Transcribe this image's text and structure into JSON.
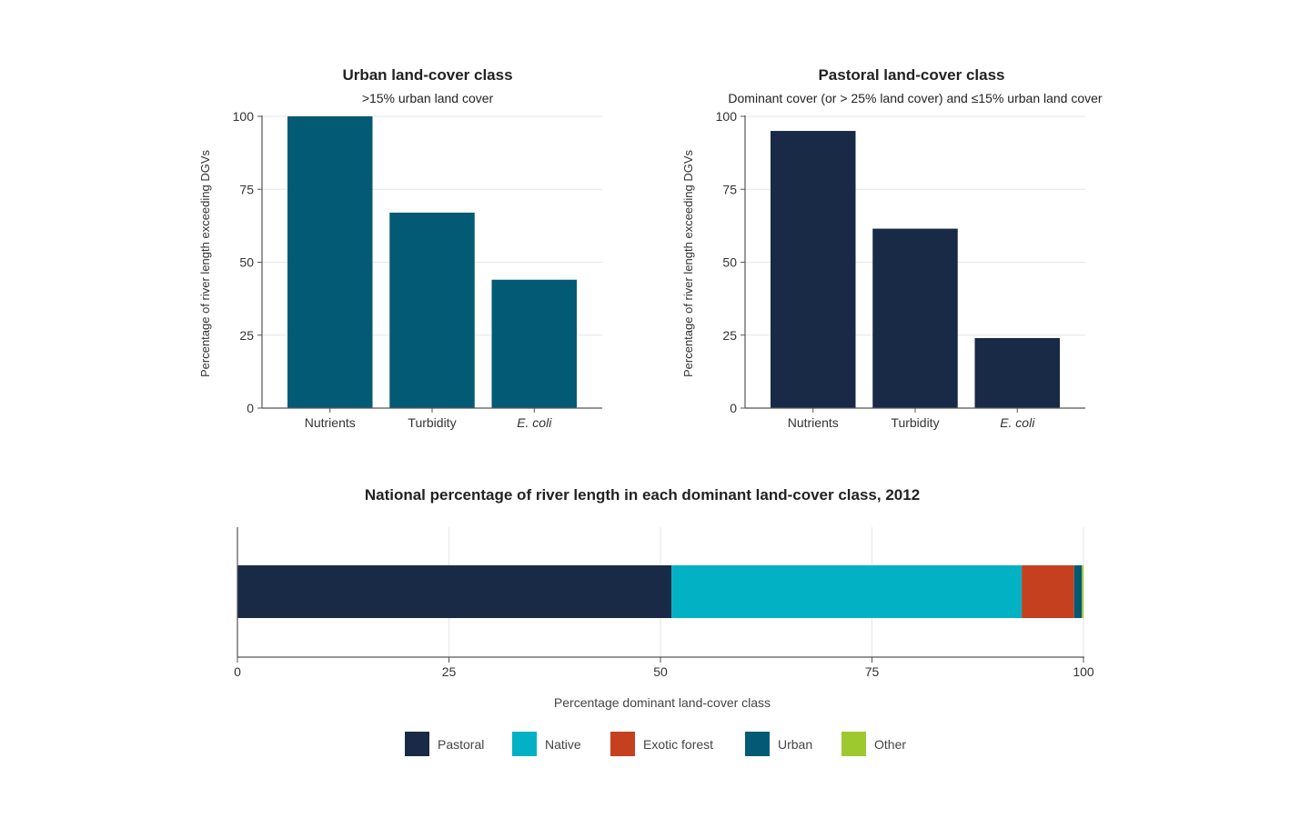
{
  "chart_data": [
    {
      "type": "bar",
      "title": "Urban land-cover class",
      "subtitle": ">15% urban land cover",
      "ylabel": "Percentage of river length exceeding DGVs",
      "xlabel": "",
      "categories": [
        "Nutrients",
        "Turbidity",
        "E. coli"
      ],
      "values": [
        100,
        67,
        44
      ],
      "ylim": [
        0,
        100
      ],
      "yticks": [
        0,
        25,
        50,
        75,
        100
      ],
      "color": "#035a75",
      "grid": true
    },
    {
      "type": "bar",
      "title": "Pastoral land-cover class",
      "subtitle": "Dominant cover (or > 25% land cover) and ≤15% urban land cover",
      "ylabel": "Percentage of river length exceeding DGVs",
      "xlabel": "",
      "categories": [
        "Nutrients",
        "Turbidity",
        "E. coli"
      ],
      "values": [
        95,
        61.5,
        24
      ],
      "ylim": [
        0,
        100
      ],
      "yticks": [
        0,
        25,
        50,
        75,
        100
      ],
      "color": "#182a46",
      "grid": true
    },
    {
      "type": "bar",
      "orientation": "horizontal-stacked",
      "title": "National percentage of river length in each dominant land-cover class, 2012",
      "xlabel": "Percentage dominant land-cover class",
      "xlim": [
        0,
        100
      ],
      "xticks": [
        0,
        25,
        50,
        75,
        100
      ],
      "series": [
        {
          "name": "Pastoral",
          "values": [
            51.3
          ],
          "color": "#182a46"
        },
        {
          "name": "Native",
          "values": [
            41.4
          ],
          "color": "#02b1c4"
        },
        {
          "name": "Exotic forest",
          "values": [
            6.2
          ],
          "color": "#c4401f"
        },
        {
          "name": "Urban",
          "values": [
            0.9
          ],
          "color": "#035a75"
        },
        {
          "name": "Other",
          "values": [
            0.2
          ],
          "color": "#9ec92e"
        }
      ],
      "legend": "bottom"
    }
  ]
}
